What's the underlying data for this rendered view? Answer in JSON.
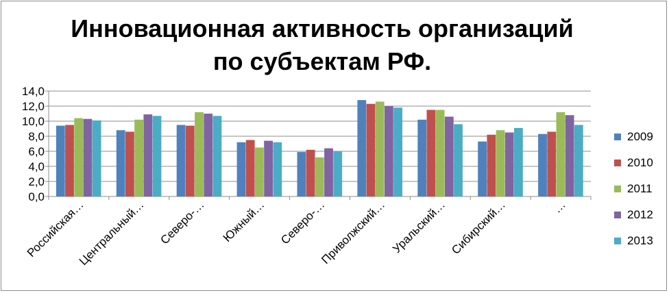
{
  "chart_data": {
    "type": "bar",
    "title": "Инновационная активность организаций по субъектам РФ.",
    "xlabel": "",
    "ylabel": "",
    "ylim": [
      0,
      14
    ],
    "yticks": [
      "0,0",
      "2,0",
      "4,0",
      "6,0",
      "8,0",
      "10,0",
      "12,0",
      "14,0"
    ],
    "grid": true,
    "legend_position": "right",
    "categories": [
      "Российская…",
      "Центральный…",
      "Северо-…",
      "Южный…",
      "Северо-…",
      "Приволжский…",
      "Уральский…",
      "Сибирский…",
      "…"
    ],
    "series": [
      {
        "name": "2009",
        "color": "#4f81bd",
        "values": [
          9.4,
          8.8,
          9.5,
          7.2,
          5.9,
          12.8,
          10.2,
          7.3,
          8.3
        ]
      },
      {
        "name": "2010",
        "color": "#c0504d",
        "values": [
          9.5,
          8.6,
          9.4,
          7.5,
          6.2,
          12.3,
          11.5,
          8.2,
          8.6
        ]
      },
      {
        "name": "2011",
        "color": "#9bbb59",
        "values": [
          10.4,
          10.2,
          11.2,
          6.5,
          5.2,
          12.6,
          11.5,
          8.8,
          11.2
        ]
      },
      {
        "name": "2012",
        "color": "#8064a2",
        "values": [
          10.3,
          10.9,
          11.0,
          7.4,
          6.4,
          12.0,
          10.6,
          8.5,
          10.8
        ]
      },
      {
        "name": "2013",
        "color": "#4bacc6",
        "values": [
          10.1,
          10.7,
          10.7,
          7.2,
          6.0,
          11.8,
          9.6,
          9.1,
          9.5
        ]
      }
    ]
  }
}
